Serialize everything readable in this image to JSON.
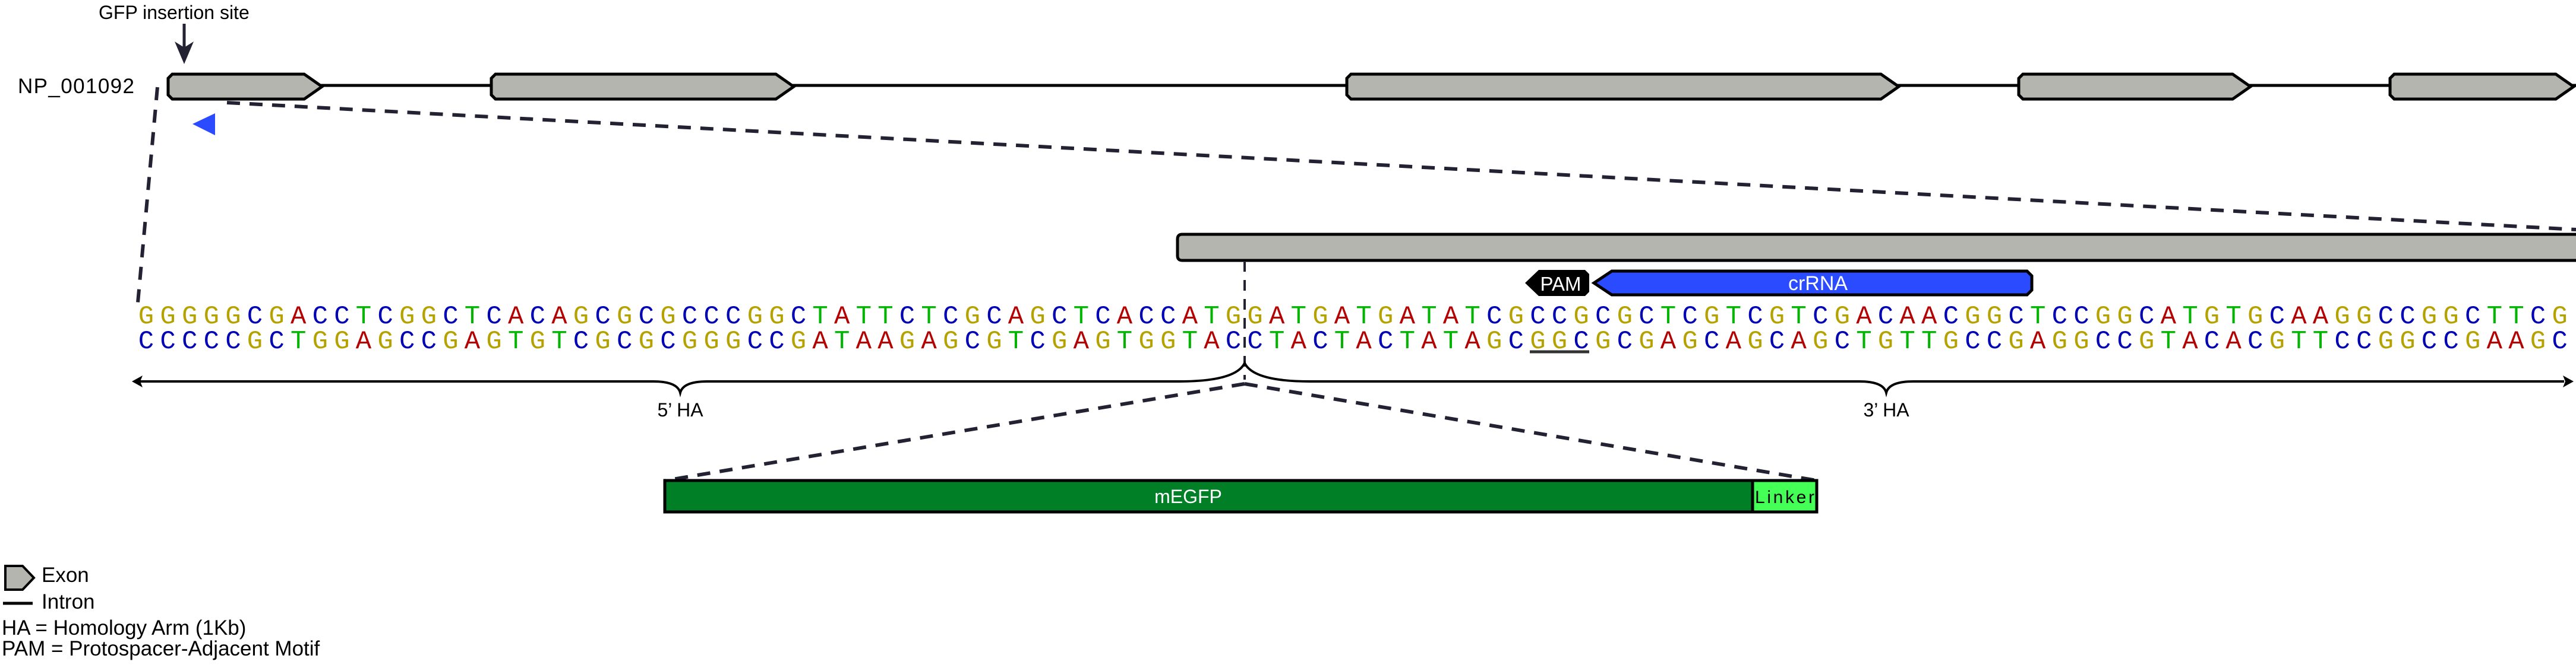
{
  "header": {
    "insertion_label": "GFP insertion site",
    "gene_name": "NP_001092"
  },
  "sequence": {
    "top": "GGGGGCGACCTCGGCTCACAGCGCGCCCGGCTATTCTCGCAGCTCACCATGGATGATGATATCGCCGCGCTCGTCGTCGACAACGGCTCCGGCATGTGCAAGGCCGGCTTCG",
    "bottom": "CCCCCGCTGGAGCCGAGTGTCGCGCGGGCCGATAAGAGCGTCGAGTGGTACCTACTACTATAGCGGCGCGAGCAGCAGCTGTTGCCGAGGCCGTACACGTTCCGGCCGAAGC",
    "base_colors": {
      "G": "#b5a200",
      "C": "#0000b4",
      "A": "#b40000",
      "T": "#00b400"
    }
  },
  "features": {
    "pam_label": "PAM",
    "crrna_label": "crRNA",
    "crrna_color": "#2a4bff",
    "five_ha_label": "5’ HA",
    "three_ha_label": "3’ HA",
    "megfp_label": "mEGFP",
    "megfp_color": "#007f27",
    "linker_label": "Linker",
    "linker_color": "#44ff55",
    "exon_color": "#b5b5b0",
    "marker_color": "#2a4bff"
  },
  "legend": {
    "exon": "Exon",
    "intron": "Intron",
    "ha": "HA = Homology Arm (1Kb)",
    "pam": "PAM = Protospacer-Adjacent Motif"
  }
}
